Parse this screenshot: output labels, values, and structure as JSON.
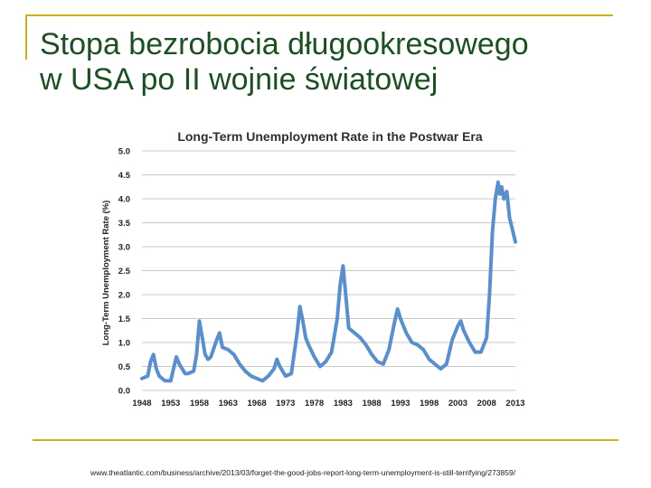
{
  "slide": {
    "title_line1": "Stopa bezrobocia długookresowego",
    "title_line2": "w USA po II wojnie światowej",
    "source": "www.theatlantic.com/business/archive/2013/03/forget-the-good-jobs-report-long-term-unemployment-is-still-terrifying/273859/",
    "accent_color": "#c9b020",
    "title_color": "#1d4e24"
  },
  "chart_data": {
    "type": "line",
    "title": "Long-Term Unemployment Rate in the Postwar Era",
    "xlabel": "",
    "ylabel": "Long-Term Unemployment Rate (%)",
    "xlim": [
      1948,
      2013
    ],
    "ylim": [
      0,
      5
    ],
    "x_ticks": [
      "1948",
      "1953",
      "1958",
      "1963",
      "1968",
      "1973",
      "1978",
      "1983",
      "1988",
      "1993",
      "1998",
      "2003",
      "2008",
      "2013"
    ],
    "y_ticks": [
      "0.0",
      "0.5",
      "1.0",
      "1.5",
      "2.0",
      "2.5",
      "3.0",
      "3.5",
      "4.0",
      "4.5",
      "5.0"
    ],
    "grid": true,
    "line_color": "#5b8fcb",
    "series": [
      {
        "name": "",
        "x": [
          1948,
          1949,
          1949.5,
          1950,
          1950.5,
          1951,
          1952,
          1953,
          1953.5,
          1954,
          1954.5,
          1955,
          1955.5,
          1956,
          1957,
          1957.5,
          1958,
          1958.5,
          1959,
          1959.5,
          1960,
          1961,
          1961.5,
          1962,
          1963,
          1964,
          1965,
          1966,
          1967,
          1968,
          1969,
          1970,
          1971,
          1971.5,
          1972,
          1973,
          1974,
          1975,
          1975.5,
          1976,
          1976.5,
          1977,
          1978,
          1979,
          1980,
          1981,
          1982,
          1982.5,
          1983,
          1983.5,
          1984,
          1985,
          1986,
          1987,
          1988,
          1989,
          1990,
          1991,
          1992,
          1992.5,
          1993,
          1994,
          1995,
          1996,
          1997,
          1998,
          1999,
          2000,
          2001,
          2002,
          2003,
          2003.5,
          2004,
          2005,
          2006,
          2007,
          2008,
          2008.5,
          2009,
          2009.5,
          2010,
          2010.3,
          2010.6,
          2011,
          2011.5,
          2012,
          2012.5,
          2013
        ],
        "y": [
          0.25,
          0.3,
          0.6,
          0.75,
          0.45,
          0.3,
          0.2,
          0.2,
          0.45,
          0.7,
          0.55,
          0.45,
          0.35,
          0.35,
          0.4,
          0.75,
          1.45,
          1.1,
          0.75,
          0.65,
          0.7,
          1.05,
          1.2,
          0.9,
          0.85,
          0.75,
          0.55,
          0.4,
          0.3,
          0.25,
          0.2,
          0.3,
          0.45,
          0.65,
          0.5,
          0.3,
          0.35,
          1.2,
          1.75,
          1.45,
          1.1,
          0.95,
          0.7,
          0.5,
          0.6,
          0.8,
          1.5,
          2.2,
          2.6,
          1.95,
          1.3,
          1.2,
          1.1,
          0.95,
          0.75,
          0.6,
          0.55,
          0.85,
          1.45,
          1.7,
          1.5,
          1.2,
          1.0,
          0.95,
          0.85,
          0.65,
          0.55,
          0.45,
          0.55,
          1.05,
          1.35,
          1.45,
          1.25,
          1.0,
          0.8,
          0.8,
          1.1,
          2.0,
          3.3,
          4.0,
          4.35,
          4.1,
          4.25,
          4.0,
          4.15,
          3.6,
          3.35,
          3.1
        ]
      }
    ]
  }
}
